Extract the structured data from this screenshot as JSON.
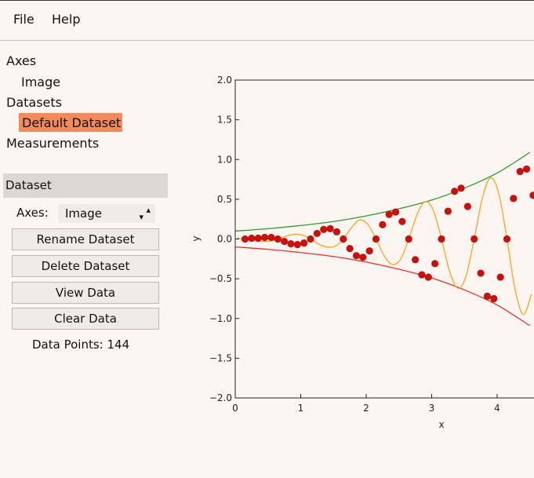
{
  "menu": [
    "File",
    "Help"
  ],
  "tree": {
    "axes": "Axes",
    "axes_items": [
      "Image"
    ],
    "datasets": "Datasets",
    "dataset_items": [
      "Default Dataset"
    ],
    "measurements": "Measurements"
  },
  "panel": {
    "title": "Dataset",
    "axes_label": "Axes:",
    "axes_value": "Image",
    "buttons": [
      "Rename Dataset",
      "Delete Dataset",
      "View Data",
      "Clear Data"
    ],
    "data_points_label": "Data Points:",
    "data_points": 144
  },
  "chart_data": {
    "type": "scatter",
    "xlabel": "x",
    "ylabel": "y",
    "xlim": [
      0,
      5
    ],
    "ylim": [
      -2,
      2
    ],
    "xticks": [
      0,
      1,
      2,
      3,
      4
    ],
    "yticks": [
      {
        "value": -2,
        "label": "−2.0"
      },
      {
        "value": -1.5,
        "label": "−1.5"
      },
      {
        "value": -1,
        "label": "−1.0"
      },
      {
        "value": -0.5,
        "label": "−0.5"
      },
      {
        "value": 0,
        "label": "0.0"
      },
      {
        "value": 0.5,
        "label": "0.5"
      },
      {
        "value": 1,
        "label": "1.0"
      },
      {
        "value": 1.5,
        "label": "1.5"
      },
      {
        "value": 2,
        "label": "2.0"
      }
    ],
    "series": [
      {
        "mark": "line",
        "color": "#2f9a2f",
        "x": [
          0,
          0.5,
          1,
          1.5,
          2,
          2.5,
          3,
          3.5,
          4,
          4.5
        ],
        "values": [
          0.1,
          0.13,
          0.17,
          0.22,
          0.29,
          0.38,
          0.49,
          0.64,
          0.83,
          1.09
        ]
      },
      {
        "mark": "line",
        "color": "#e8322c",
        "x": [
          0,
          0.5,
          1,
          1.5,
          2,
          2.5,
          3,
          3.5,
          4,
          4.5
        ],
        "values": [
          -0.1,
          -0.13,
          -0.17,
          -0.22,
          -0.29,
          -0.38,
          -0.49,
          -0.64,
          -0.83,
          -1.09
        ]
      },
      {
        "mark": "line",
        "color": "#f5a623",
        "x": [
          0.025,
          0.15,
          0.275,
          0.4,
          0.525,
          0.65,
          0.775,
          0.9,
          1.025,
          1.15,
          1.275,
          1.4,
          1.525,
          1.65,
          1.775,
          1.9,
          2.025,
          2.15,
          2.275,
          2.4,
          2.525,
          2.65,
          2.775,
          2.9,
          3.025,
          3.15,
          3.275,
          3.4,
          3.525,
          3.65,
          3.775,
          3.9,
          4.025,
          4.15,
          4.275,
          4.4,
          4.525
        ],
        "values": [
          0.014,
          0,
          -0.018,
          -0.03,
          -0.028,
          0,
          0.035,
          0.06,
          0.049,
          0,
          -0.064,
          -0.1,
          -0.092,
          0,
          0.141,
          0.24,
          0.184,
          0,
          -0.212,
          -0.32,
          -0.255,
          0,
          0.304,
          0.47,
          0.361,
          0,
          -0.41,
          -0.62,
          -0.467,
          0,
          0.516,
          0.77,
          0.573,
          0,
          -0.636,
          -0.95,
          -0.693
        ]
      },
      {
        "mark": "dot",
        "color": "#c4120e",
        "x": [
          0.15,
          0.25,
          0.35,
          0.45,
          0.55,
          0.65,
          0.75,
          0.85,
          0.95,
          1.05,
          1.15,
          1.25,
          1.35,
          1.45,
          1.55,
          1.65,
          1.75,
          1.85,
          1.95,
          2.05,
          2.15,
          2.25,
          2.35,
          2.45,
          2.55,
          2.65,
          2.75,
          2.85,
          2.95,
          3.05,
          3.15,
          3.25,
          3.35,
          3.45,
          3.55,
          3.65,
          3.75,
          3.85,
          3.95,
          4.05,
          4.15,
          4.25,
          4.35,
          4.45,
          4.55
        ],
        "values": [
          0,
          0.01,
          0.01,
          0.02,
          0.02,
          0,
          -0.03,
          -0.06,
          -0.07,
          -0.05,
          0,
          0.07,
          0.12,
          0.13,
          0.09,
          0,
          -0.12,
          -0.21,
          -0.23,
          -0.15,
          0,
          0.18,
          0.31,
          0.34,
          0.22,
          0,
          -0.26,
          -0.45,
          -0.48,
          -0.31,
          0,
          0.35,
          0.6,
          0.64,
          0.41,
          0,
          -0.43,
          -0.72,
          -0.75,
          -0.48,
          0,
          0.51,
          0.85,
          0.88,
          0.55
        ]
      }
    ]
  }
}
